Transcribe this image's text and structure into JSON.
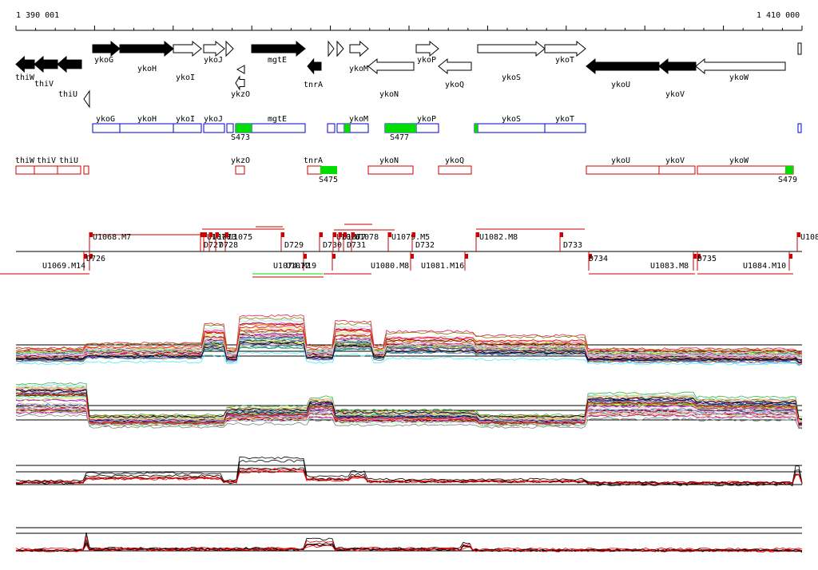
{
  "ruler": {
    "start_label": "1 390 001",
    "end_label": "1 410 000"
  },
  "colors": {
    "forward_block": "#0000cc",
    "reverse_block": "#cc0000",
    "highlight": "#00dd00",
    "series_a": "#000000",
    "series_b": "#ee0000"
  },
  "genes": [
    {
      "name": "thiW",
      "dir": "rev",
      "filled": true
    },
    {
      "name": "thiV",
      "dir": "rev",
      "filled": true
    },
    {
      "name": "thiU",
      "dir": "rev",
      "filled": true
    },
    {
      "name": "ykoG",
      "dir": "fwd",
      "filled": true
    },
    {
      "name": "ykoH",
      "dir": "fwd",
      "filled": true
    },
    {
      "name": "ykoI",
      "dir": "fwd",
      "filled": false
    },
    {
      "name": "ykoJ",
      "dir": "fwd",
      "filled": false
    },
    {
      "name": "ykzO",
      "dir": "rev",
      "filled": false
    },
    {
      "name": "mgtE",
      "dir": "fwd",
      "filled": true
    },
    {
      "name": "tnrA",
      "dir": "rev",
      "filled": true
    },
    {
      "name": "ykoM",
      "dir": "fwd",
      "filled": false
    },
    {
      "name": "ykoN",
      "dir": "rev",
      "filled": false
    },
    {
      "name": "ykoP",
      "dir": "fwd",
      "filled": false
    },
    {
      "name": "ykoQ",
      "dir": "rev",
      "filled": false
    },
    {
      "name": "ykoS",
      "dir": "fwd",
      "filled": false
    },
    {
      "name": "ykoT",
      "dir": "fwd",
      "filled": false
    },
    {
      "name": "ykoU",
      "dir": "rev",
      "filled": true
    },
    {
      "name": "ykoV",
      "dir": "rev",
      "filled": true
    },
    {
      "name": "ykoW",
      "dir": "rev",
      "filled": false
    }
  ],
  "forward_blocks": [
    "ykoG",
    "ykoH",
    "ykoI",
    "ykoJ",
    "mgtE",
    "ykoM",
    "ykoP",
    "ykoS",
    "ykoT"
  ],
  "reverse_blocks": [
    "thiW",
    "thiV",
    "thiU",
    "ykzO",
    "tnrA",
    "ykoN",
    "ykoQ",
    "ykoU",
    "ykoV",
    "ykoW"
  ],
  "highlights": [
    "S473",
    "S477",
    "S475",
    "S479"
  ],
  "segments_top": [
    "U1068.M7",
    "U1070",
    "U1073",
    "U1075",
    "D727",
    "D728",
    "D729",
    "D730",
    "U1076",
    "U1077",
    "U1078",
    "D731",
    "U1079.M5",
    "D732",
    "U1082.M8",
    "D733",
    "U108"
  ],
  "segments_bottom": [
    "U1069.M14",
    "D726",
    "U1074.M19",
    "U1072",
    "U1080.M8",
    "U1081.M16",
    "D734",
    "U1083.M8",
    "D735",
    "U1084.M10"
  ],
  "tracks": [
    {
      "name": "expression-track-1"
    },
    {
      "name": "expression-track-2"
    },
    {
      "name": "summary-track-1"
    },
    {
      "name": "summary-track-2"
    }
  ]
}
